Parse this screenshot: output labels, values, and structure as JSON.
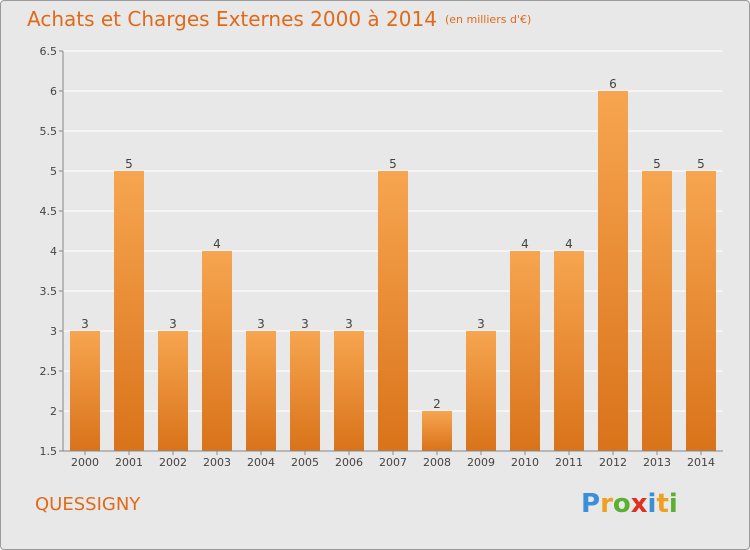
{
  "header": {
    "title": "Achats et Charges Externes 2000 à 2014",
    "subtitle": "(en milliers d'€)"
  },
  "footer": {
    "commune": "QUESSIGNY",
    "logo_letters": [
      "P",
      "r",
      "o",
      "x",
      "i",
      "t",
      "i"
    ],
    "logo_colors": [
      "#3a8fd6",
      "#f0a020",
      "#5ab030",
      "#e03020",
      "#3a8fd6",
      "#f0a020",
      "#5ab030"
    ]
  },
  "chart_data": {
    "type": "bar",
    "categories": [
      "2000",
      "2001",
      "2002",
      "2003",
      "2004",
      "2005",
      "2006",
      "2007",
      "2008",
      "2009",
      "2010",
      "2011",
      "2012",
      "2013",
      "2014"
    ],
    "values": [
      3,
      5,
      3,
      4,
      3,
      3,
      3,
      5,
      2,
      3,
      4,
      4,
      6,
      5,
      5
    ],
    "value_labels": [
      "3",
      "5",
      "3",
      "4",
      "3",
      "3",
      "3",
      "5",
      "2",
      "3",
      "4",
      "4",
      "6",
      "5",
      "5"
    ],
    "ylim": [
      1.5,
      6.5
    ],
    "yticks": [
      1.5,
      2,
      2.5,
      3,
      3.5,
      4,
      4.5,
      5,
      5.5,
      6,
      6.5
    ],
    "ytick_labels": [
      "1.5",
      "2",
      "2.5",
      "3",
      "3.5",
      "4",
      "4.5",
      "5",
      "5.5",
      "6",
      "6.5"
    ],
    "grid": true,
    "bar_color_top": "#f7a550",
    "bar_color_bottom": "#d9731a"
  }
}
